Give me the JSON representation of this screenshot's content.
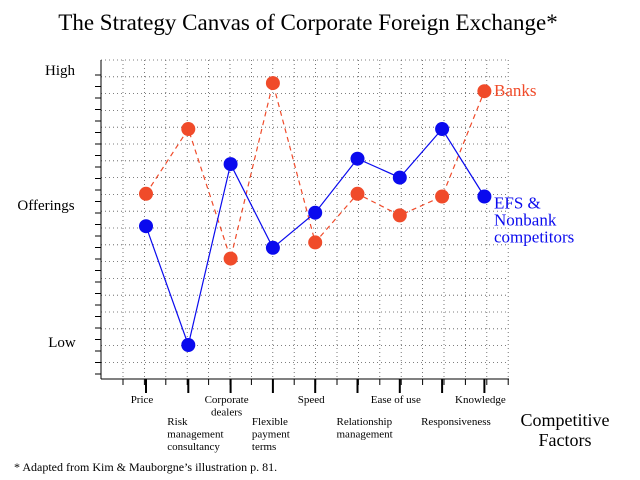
{
  "chart_data": {
    "type": "line",
    "title": "The Strategy Canvas of Corporate Foreign Exchange*",
    "ylabel": "Offerings",
    "y_tick_labels": [
      "High",
      "Low"
    ],
    "xlabel_lines": [
      "Competitive",
      "Factors"
    ],
    "ylim": [
      0,
      10
    ],
    "grid": true,
    "categories": [
      [
        "Price"
      ],
      [
        "Risk",
        "management",
        "consultancy"
      ],
      [
        "Corporate",
        "dealers"
      ],
      [
        "Flexible",
        "payment",
        "terms"
      ],
      [
        "Speed"
      ],
      [
        "Relationship",
        "management"
      ],
      [
        "Ease of use"
      ],
      [
        "Responsiveness"
      ],
      [
        "Knowledge"
      ]
    ],
    "series": [
      {
        "name": "Banks",
        "label_lines": [
          "Banks"
        ],
        "color": "#f04b2a",
        "dashed": true,
        "values": [
          5.6,
          8.0,
          3.2,
          9.7,
          3.8,
          5.6,
          4.8,
          5.5,
          9.4
        ]
      },
      {
        "name": "EFS & Nonbank competitors",
        "label_lines": [
          "EFS &",
          "Nonbank",
          "competitors"
        ],
        "color": "#0a0aee",
        "dashed": false,
        "values": [
          4.4,
          0.0,
          6.7,
          3.6,
          4.9,
          6.9,
          6.2,
          8.0,
          5.5
        ]
      }
    ]
  },
  "footnote": "* Adapted from Kim & Mauborgne’s illustration p. 81."
}
